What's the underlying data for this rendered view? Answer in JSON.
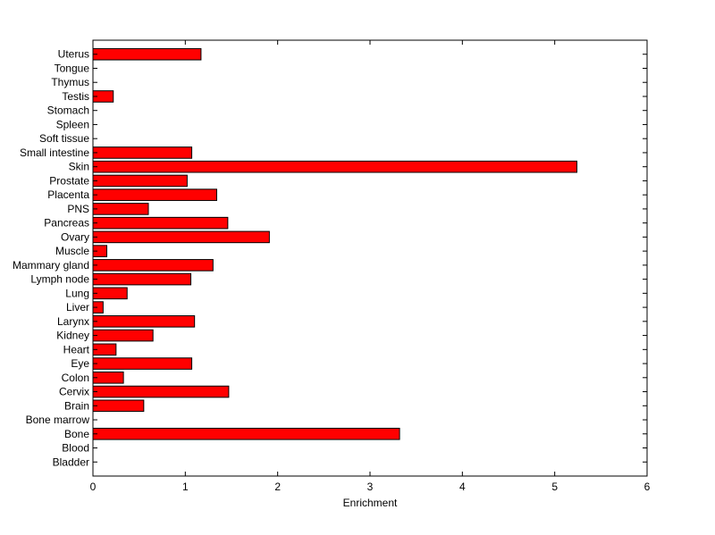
{
  "chart_data": {
    "type": "bar",
    "orientation": "horizontal",
    "title": "",
    "xlabel": "Enrichment",
    "ylabel": "",
    "xlim": [
      0,
      6
    ],
    "xticks": [
      0,
      1,
      2,
      3,
      4,
      5,
      6
    ],
    "grid": false,
    "legend": "none",
    "bar_color": "#ff0000",
    "bar_edge_color": "#000000",
    "categories": [
      "Bladder",
      "Blood",
      "Bone",
      "Bone marrow",
      "Brain",
      "Cervix",
      "Colon",
      "Eye",
      "Heart",
      "Kidney",
      "Larynx",
      "Liver",
      "Lung",
      "Lymph node",
      "Mammary gland",
      "Muscle",
      "Ovary",
      "Pancreas",
      "PNS",
      "Placenta",
      "Prostate",
      "Skin",
      "Small intestine",
      "Soft tissue",
      "Spleen",
      "Stomach",
      "Testis",
      "Thymus",
      "Tongue",
      "Uterus"
    ],
    "values": [
      0,
      0,
      3.32,
      0,
      0.55,
      1.47,
      0.33,
      1.07,
      0.25,
      0.65,
      1.1,
      0.11,
      0.37,
      1.06,
      1.3,
      0.15,
      1.91,
      1.46,
      0.6,
      1.34,
      1.02,
      5.24,
      1.07,
      0,
      0,
      0,
      0.22,
      0,
      0,
      1.17
    ]
  }
}
